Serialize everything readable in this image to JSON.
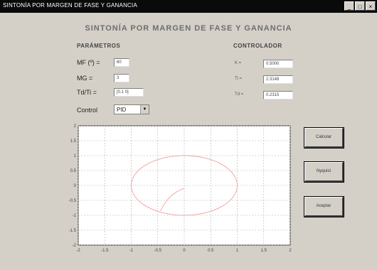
{
  "window": {
    "title": "SINTONÍA POR MARGEN DE FASE Y GANANCIA",
    "controls": [
      "_",
      "□",
      "×"
    ]
  },
  "heading": "SINTONÍA POR MARGEN DE FASE Y GANANCIA",
  "parametros": {
    "title": "PARÁMETROS",
    "mf_label": "MF (º) =",
    "mf_value": "60",
    "mg_label": "MG  =",
    "mg_value": "3",
    "td_label": "Td/Ti =",
    "td_value": "[0.1 0]",
    "control_label": "Control",
    "control_value": "PID"
  },
  "controlador": {
    "title": "CONTROLADOR",
    "k_label": "K =",
    "k_value": "0.5000",
    "ti_label": "Ti =",
    "ti_value": "2.3148",
    "td_label": "Td =",
    "td_value": "0.2315"
  },
  "buttons": {
    "calcular": "Calcular",
    "dibujar": "Nyquist",
    "aceptar": "Aceptar"
  },
  "chart_data": {
    "type": "line",
    "title": "",
    "xlabel": "",
    "ylabel": "",
    "xlim": [
      -2,
      2
    ],
    "ylim": [
      -2,
      2
    ],
    "grid": true,
    "x_ticks": [
      "-2",
      "-1.5",
      "-1",
      "-0.5",
      "0",
      "0.5",
      "1",
      "1.5",
      "2"
    ],
    "y_ticks": [
      "2",
      "1.5",
      "1",
      "0.5",
      "0",
      "-0.5",
      "-1",
      "-1.5",
      "-2"
    ],
    "series": [
      {
        "kind": "ellipse",
        "cx": 0,
        "cy": 0,
        "rx": 1,
        "ry": 1,
        "color": "#f0a0a0"
      },
      {
        "kind": "curve",
        "x": [
          -0.45,
          -0.35,
          -0.25,
          -0.15,
          -0.05,
          0.0
        ],
        "y": [
          -0.85,
          -0.55,
          -0.35,
          -0.22,
          -0.13,
          -0.1
        ],
        "color": "#f0a0a0"
      }
    ]
  },
  "colors": {
    "plot_bg": "#ffffff",
    "grid": "#b0b0b0",
    "curve": "#f0a0a0",
    "window_bg": "#d4d0c8"
  }
}
